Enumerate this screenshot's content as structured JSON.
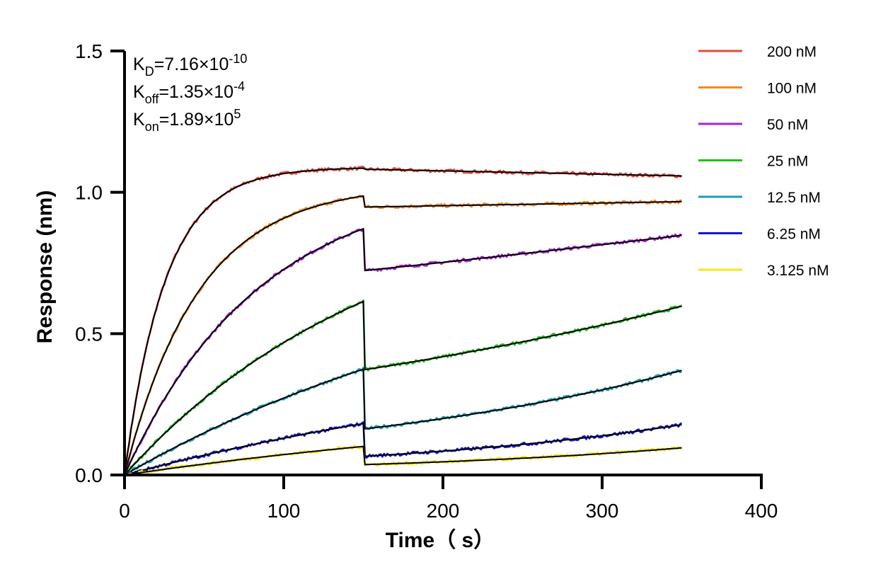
{
  "chart_data": {
    "type": "line",
    "xlabel": "Time（ s）",
    "ylabel": "Response (nm)",
    "xlim": [
      0,
      400
    ],
    "ylim": [
      0,
      1.5
    ],
    "x_ticks": [
      "0",
      "100",
      "200",
      "300",
      "400"
    ],
    "y_ticks": [
      "0.0",
      "0.5",
      "1.0",
      "1.5"
    ],
    "grid": false,
    "legend_position": "top-right",
    "association_end": 150,
    "dissociation_end": 350,
    "kinetics": [
      {
        "base": "K",
        "sub": "D",
        "value": "=7.16×10",
        "exp": "-10"
      },
      {
        "base": "K",
        "sub": "off",
        "value": "=1.35×10",
        "exp": "-4"
      },
      {
        "base": "K",
        "sub": "on",
        "value": "=1.89×10",
        "exp": "5"
      }
    ],
    "fit_color": "#000000",
    "series": [
      {
        "name": "200 nM",
        "color": "#e8483c",
        "plateau": 1.085,
        "k_obs": 0.039,
        "end": 1.058
      },
      {
        "name": "100 nM",
        "color": "#f28a1e",
        "plateau": 0.987,
        "k_obs": 0.0215,
        "end": 0.967
      },
      {
        "name": "50 nM",
        "color": "#a722d6",
        "plateau": 0.871,
        "k_obs": 0.0118,
        "end": 0.848
      },
      {
        "name": "25 nM",
        "color": "#1fbf1f",
        "plateau": 0.614,
        "k_obs": 0.0062,
        "end": 0.597
      },
      {
        "name": "12.5 nM",
        "color": "#1b9db1",
        "plateau": 0.374,
        "k_obs": 0.0038,
        "end": 0.37
      },
      {
        "name": "6.25 nM",
        "color": "#1414d6",
        "plateau": 0.182,
        "k_obs": 0.003,
        "end": 0.178
      },
      {
        "name": "3.125 nM",
        "color": "#f5e81a",
        "plateau": 0.101,
        "k_obs": 0.003,
        "end": 0.096
      }
    ]
  }
}
